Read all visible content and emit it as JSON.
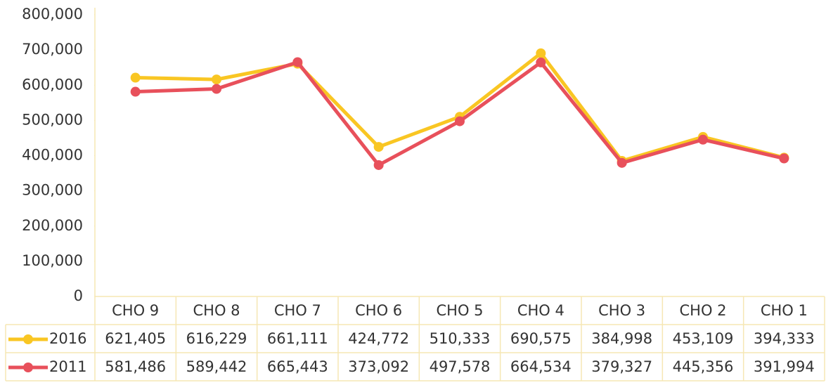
{
  "chart_data": {
    "type": "line",
    "categories": [
      "CHO 9",
      "CHO 8",
      "CHO 7",
      "CHO 6",
      "CHO 5",
      "CHO 4",
      "CHO 3",
      "CHO 2",
      "CHO 1"
    ],
    "series": [
      {
        "name": "2016",
        "color": "#f9c623",
        "values": [
          621405,
          616229,
          661111,
          424772,
          510333,
          690575,
          384998,
          453109,
          394333
        ],
        "value_labels": [
          "621,405",
          "616,229",
          "661,111",
          "424,772",
          "510,333",
          "690,575",
          "384,998",
          "453,109",
          "394,333"
        ]
      },
      {
        "name": "2011",
        "color": "#e8505b",
        "values": [
          581486,
          589442,
          665443,
          373092,
          497578,
          664534,
          379327,
          445356,
          391994
        ],
        "value_labels": [
          "581,486",
          "589,442",
          "665,443",
          "373,092",
          "497,578",
          "664,534",
          "379,327",
          "445,356",
          "391,994"
        ]
      }
    ],
    "ylim": [
      0,
      800000
    ],
    "yticks": [
      0,
      {
        "value": 100000,
        "label": "100,000"
      },
      {
        "value": 200000,
        "label": "200,000"
      },
      {
        "value": 300000,
        "label": "300,000"
      },
      {
        "value": 400000,
        "label": "400,000"
      },
      {
        "value": 500000,
        "label": "500,000"
      },
      {
        "value": 600000,
        "label": "600,000"
      },
      {
        "value": 700000,
        "label": "700,000"
      },
      {
        "value": 800000,
        "label": "800,000"
      }
    ],
    "grid": false,
    "data_table": true
  }
}
